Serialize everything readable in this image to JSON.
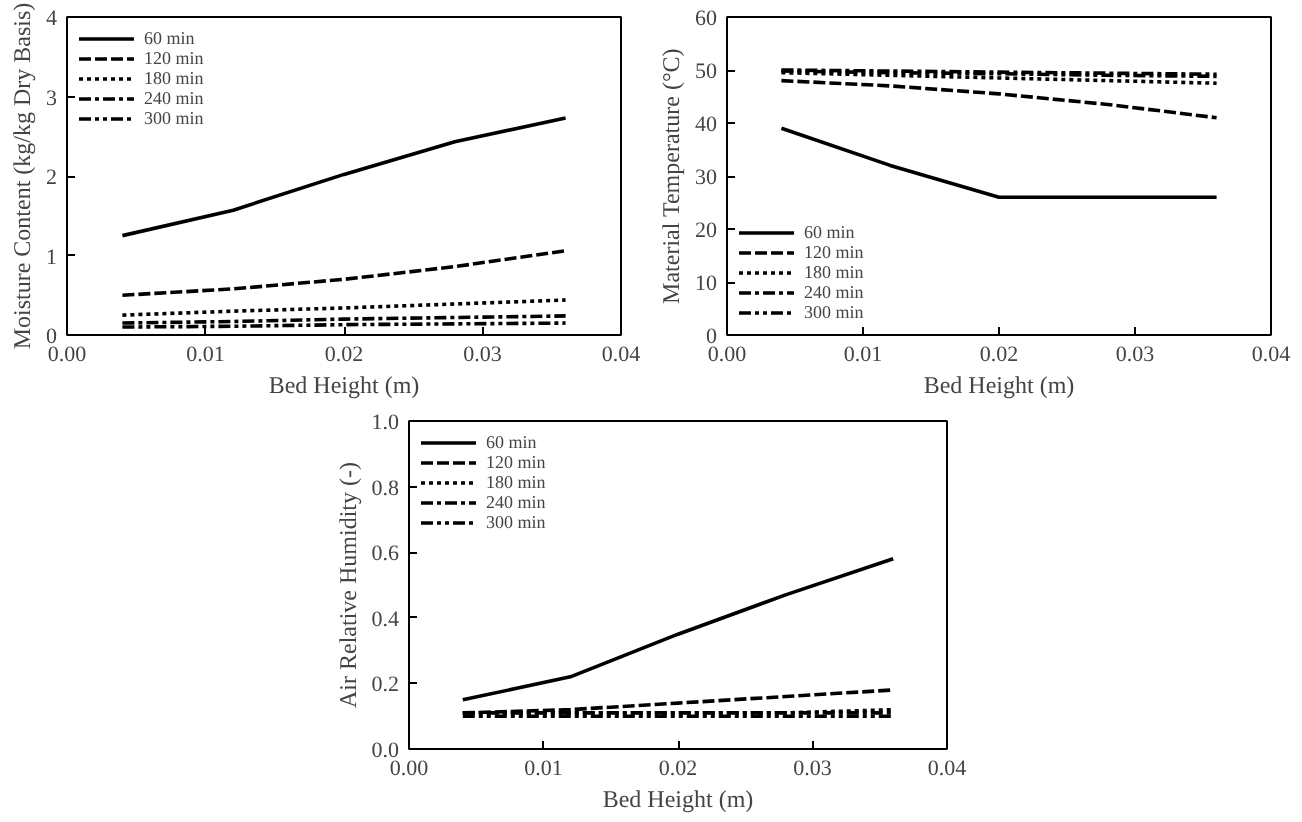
{
  "chart_data": [
    {
      "type": "line",
      "xlabel": "Bed Height (m)",
      "ylabel": "Moisture Content (kg/kg Dry Basis)",
      "x": [
        0.004,
        0.012,
        0.02,
        0.028,
        0.036
      ],
      "xlim": [
        0,
        0.04
      ],
      "xticks": [
        {
          "value": 0,
          "label": "0.00"
        },
        {
          "value": 0.01,
          "label": "0.01"
        },
        {
          "value": 0.02,
          "label": "0.02"
        },
        {
          "value": 0.03,
          "label": "0.03"
        },
        {
          "value": 0.04,
          "label": "0.04"
        }
      ],
      "ylim": [
        0,
        4
      ],
      "yticks": [
        0,
        1,
        2,
        3,
        4
      ],
      "grid": false,
      "legend": "top left",
      "marker": "none",
      "series": [
        {
          "name": "60 min",
          "color": "#000000",
          "line_style": "solid",
          "values": [
            1.25,
            1.57,
            2.02,
            2.43,
            2.73
          ]
        },
        {
          "name": "120 min",
          "color": "#000000",
          "line_style": "dashed",
          "values": [
            0.5,
            0.58,
            0.7,
            0.86,
            1.06
          ]
        },
        {
          "name": "180 min",
          "color": "#000000",
          "line_style": "dotted",
          "values": [
            0.25,
            0.3,
            0.34,
            0.39,
            0.44
          ]
        },
        {
          "name": "240 min",
          "color": "#000000",
          "line_style": "dashdot",
          "values": [
            0.15,
            0.17,
            0.2,
            0.22,
            0.24
          ]
        },
        {
          "name": "300 min",
          "color": "#000000",
          "line_style": "dashdotdot",
          "values": [
            0.1,
            0.11,
            0.13,
            0.14,
            0.15
          ]
        }
      ]
    },
    {
      "type": "line",
      "xlabel": "Bed Height (m)",
      "ylabel": "Material Temperature (°C)",
      "x": [
        0.004,
        0.012,
        0.02,
        0.028,
        0.036
      ],
      "xlim": [
        0,
        0.04
      ],
      "xticks": [
        {
          "value": 0,
          "label": "0.00"
        },
        {
          "value": 0.01,
          "label": "0.01"
        },
        {
          "value": 0.02,
          "label": "0.02"
        },
        {
          "value": 0.03,
          "label": "0.03"
        },
        {
          "value": 0.04,
          "label": "0.04"
        }
      ],
      "ylim": [
        0,
        60
      ],
      "yticks": [
        0,
        10,
        20,
        30,
        40,
        50,
        60
      ],
      "grid": false,
      "legend": "bottom left",
      "marker": "none",
      "series": [
        {
          "name": "60 min",
          "color": "#000000",
          "line_style": "solid",
          "values": [
            39,
            32,
            26,
            26,
            26
          ]
        },
        {
          "name": "120 min",
          "color": "#000000",
          "line_style": "dashed",
          "values": [
            48,
            47,
            45.5,
            43.5,
            41
          ]
        },
        {
          "name": "180 min",
          "color": "#000000",
          "line_style": "dotted",
          "values": [
            49.5,
            49,
            48.5,
            48,
            47.5
          ]
        },
        {
          "name": "240 min",
          "color": "#000000",
          "line_style": "dashdot",
          "values": [
            50,
            49.8,
            49.6,
            49.4,
            49.2
          ]
        },
        {
          "name": "300 min",
          "color": "#000000",
          "line_style": "dashdotdot",
          "values": [
            49.8,
            49.5,
            49.3,
            49,
            48.8
          ]
        }
      ]
    },
    {
      "type": "line",
      "xlabel": "Bed Height (m)",
      "ylabel": "Air Relative Humidity (-)",
      "x": [
        0.004,
        0.012,
        0.02,
        0.028,
        0.036
      ],
      "xlim": [
        0,
        0.04
      ],
      "xticks": [
        {
          "value": 0,
          "label": "0.00"
        },
        {
          "value": 0.01,
          "label": "0.01"
        },
        {
          "value": 0.02,
          "label": "0.02"
        },
        {
          "value": 0.03,
          "label": "0.03"
        },
        {
          "value": 0.04,
          "label": "0.04"
        }
      ],
      "ylim": [
        0,
        1.0
      ],
      "yticks": [
        {
          "value": 0,
          "label": "0.0"
        },
        {
          "value": 0.2,
          "label": "0.2"
        },
        {
          "value": 0.4,
          "label": "0.4"
        },
        {
          "value": 0.6,
          "label": "0.6"
        },
        {
          "value": 0.8,
          "label": "0.8"
        },
        {
          "value": 1.0,
          "label": "1.0"
        }
      ],
      "grid": false,
      "legend": "top left",
      "marker": "none",
      "series": [
        {
          "name": "60 min",
          "color": "#000000",
          "line_style": "solid",
          "values": [
            0.15,
            0.22,
            0.35,
            0.47,
            0.58
          ]
        },
        {
          "name": "120 min",
          "color": "#000000",
          "line_style": "dashed",
          "values": [
            0.11,
            0.12,
            0.14,
            0.16,
            0.18
          ]
        },
        {
          "name": "180 min",
          "color": "#000000",
          "line_style": "dotted",
          "values": [
            0.11,
            0.11,
            0.11,
            0.11,
            0.12
          ]
        },
        {
          "name": "240 min",
          "color": "#000000",
          "line_style": "dashdot",
          "values": [
            0.11,
            0.11,
            0.11,
            0.11,
            0.11
          ]
        },
        {
          "name": "300 min",
          "color": "#000000",
          "line_style": "dashdotdot",
          "values": [
            0.1,
            0.1,
            0.1,
            0.1,
            0.1
          ]
        }
      ]
    }
  ]
}
